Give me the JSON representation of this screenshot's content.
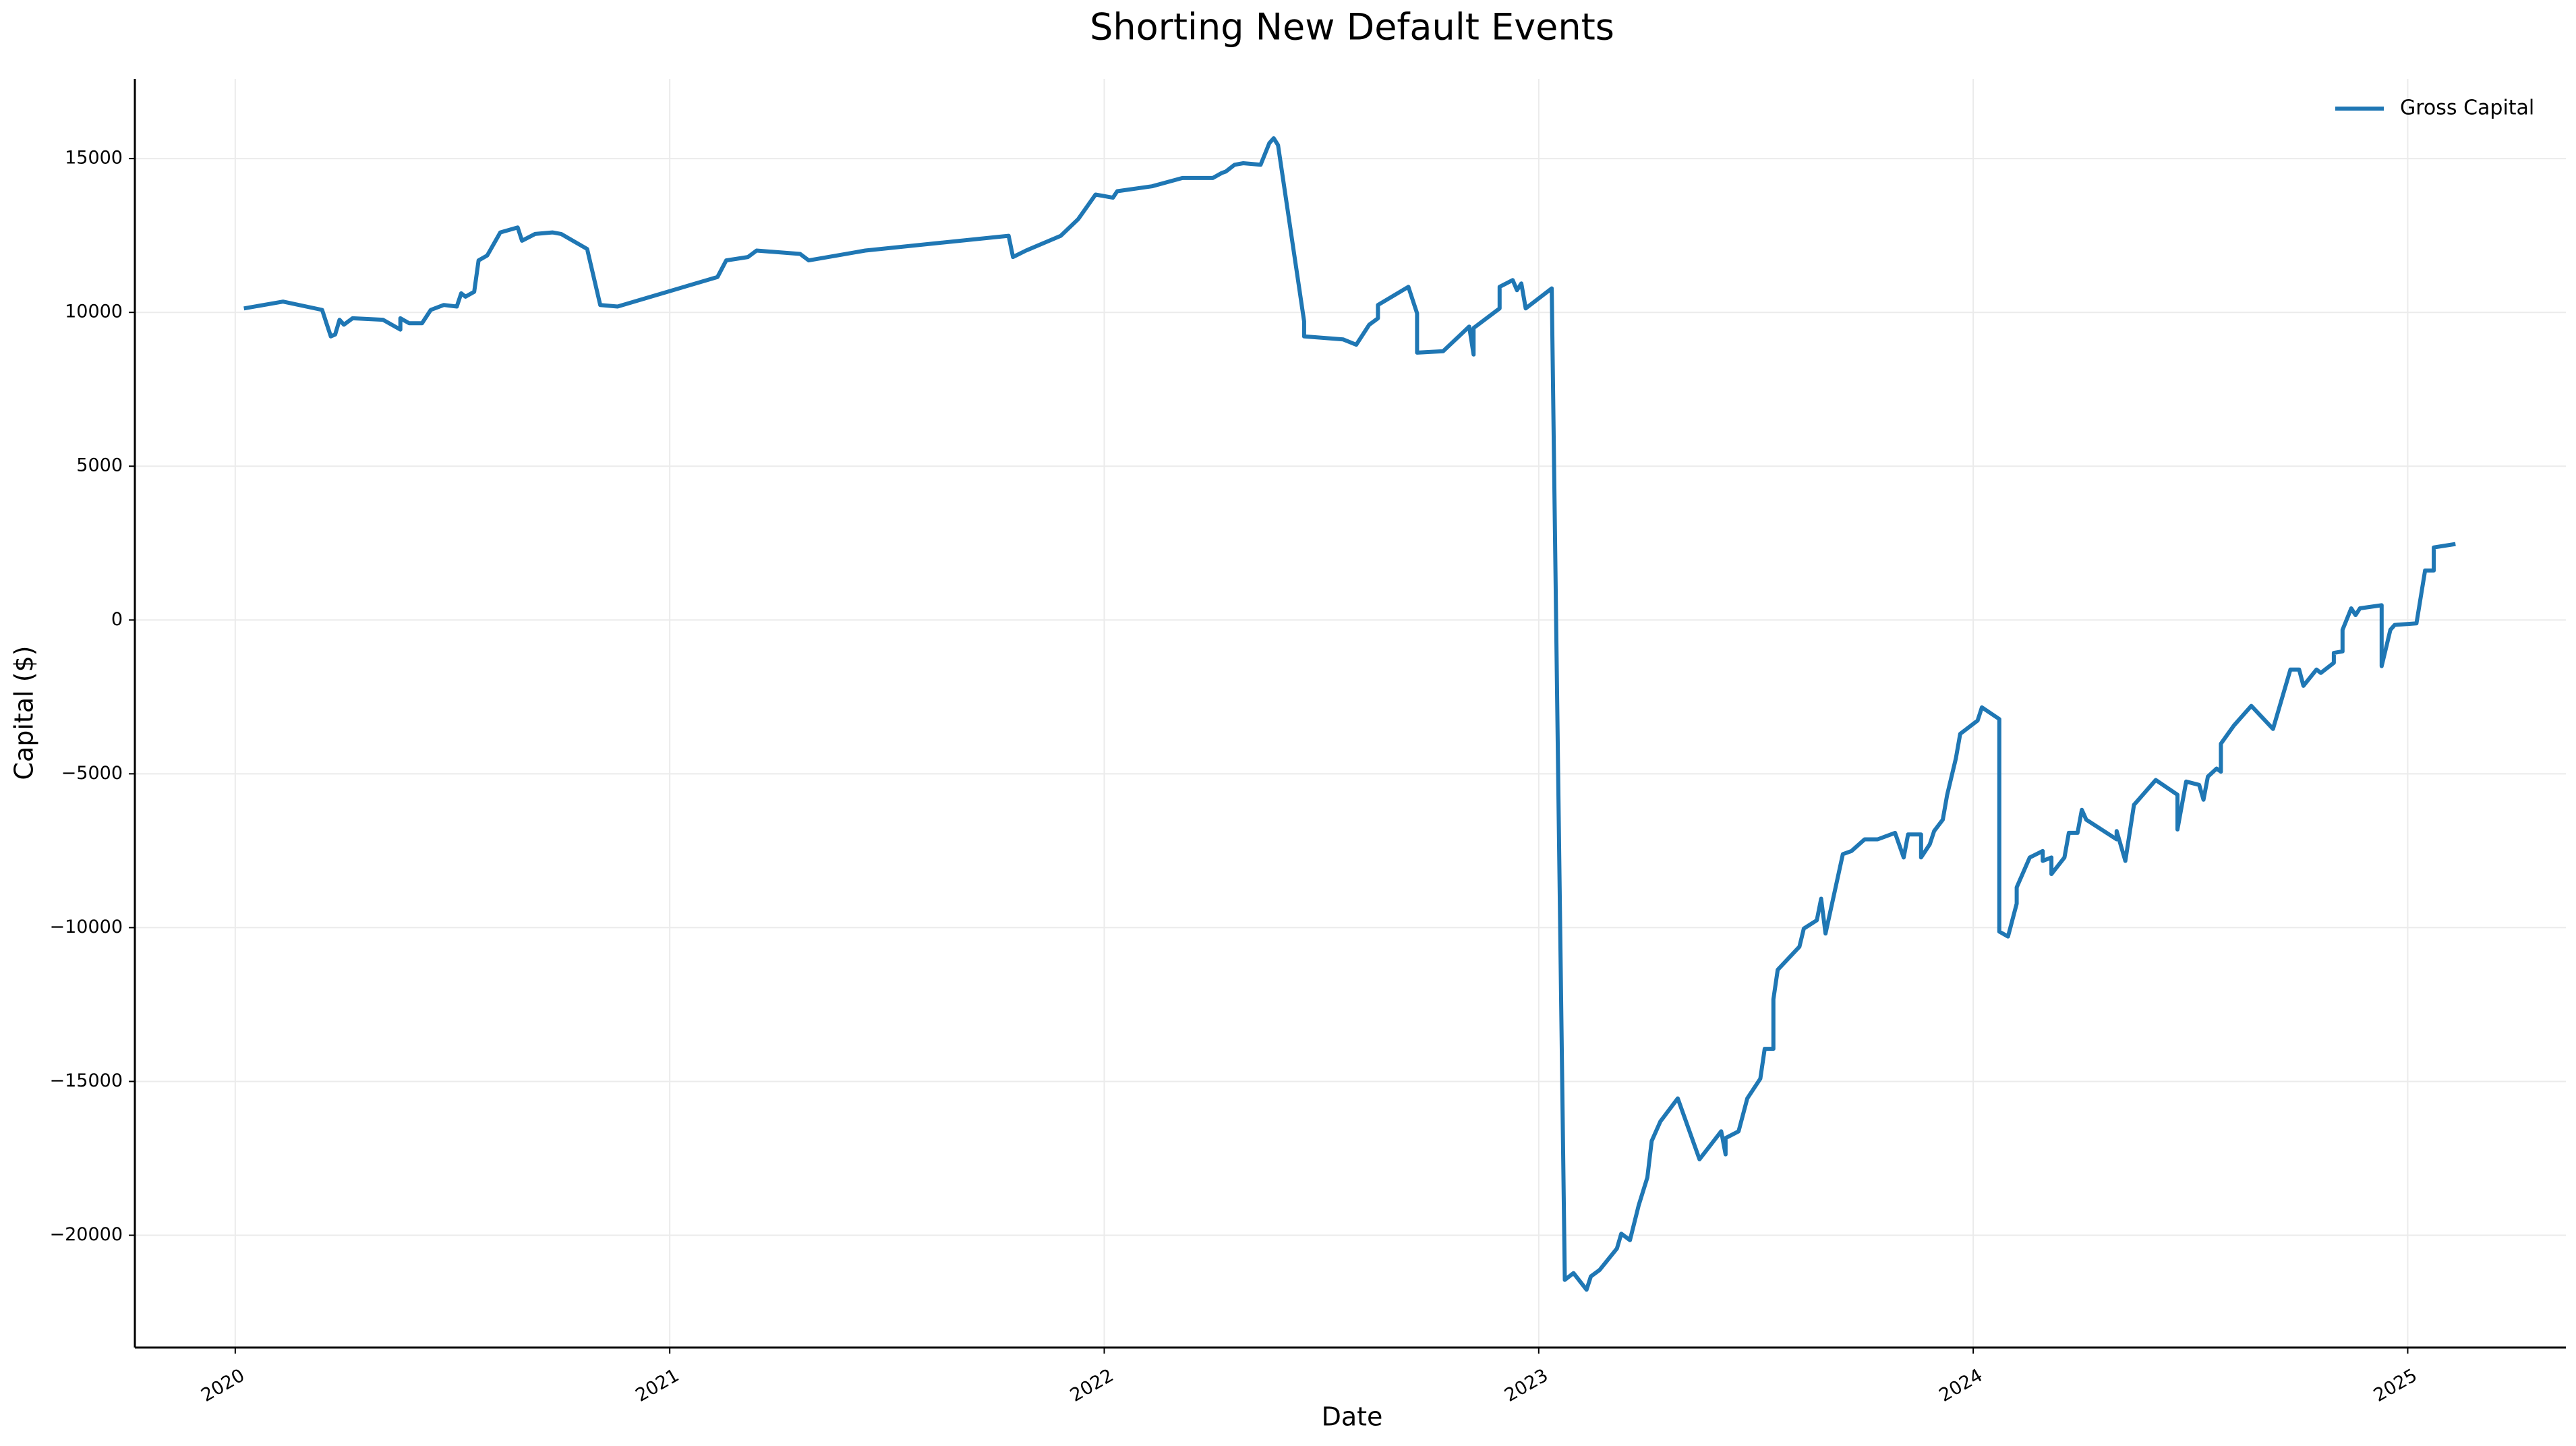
{
  "chart_data": {
    "type": "line",
    "title": "Shorting New Default Events",
    "xlabel": "Date",
    "ylabel": "Capital ($)",
    "x": [
      2020.02,
      2020.11,
      2020.2,
      2020.21,
      2020.22,
      2020.23,
      2020.24,
      2020.25,
      2020.27,
      2020.34,
      2020.38,
      2020.38,
      2020.4,
      2020.43,
      2020.45,
      2020.48,
      2020.51,
      2020.52,
      2020.53,
      2020.55,
      2020.56,
      2020.58,
      2020.61,
      2020.65,
      2020.66,
      2020.69,
      2020.73,
      2020.75,
      2020.81,
      2020.84,
      2020.88,
      2021.11,
      2021.13,
      2021.18,
      2021.2,
      2021.3,
      2021.32,
      2021.45,
      2021.78,
      2021.79,
      2021.82,
      2021.9,
      2021.94,
      2021.98,
      2022.02,
      2022.03,
      2022.11,
      2022.18,
      2022.25,
      2022.27,
      2022.28,
      2022.3,
      2022.32,
      2022.36,
      2022.38,
      2022.39,
      2022.4,
      2022.46,
      2022.46,
      2022.55,
      2022.58,
      2022.61,
      2022.63,
      2022.63,
      2022.7,
      2022.72,
      2022.72,
      2022.78,
      2022.84,
      2022.85,
      2022.85,
      2022.91,
      2022.91,
      2022.94,
      2022.95,
      2022.96,
      2022.97,
      2023.03,
      2023.06,
      2023.08,
      2023.11,
      2023.12,
      2023.14,
      2023.18,
      2023.19,
      2023.21,
      2023.23,
      2023.25,
      2023.26,
      2023.28,
      2023.32,
      2023.37,
      2023.42,
      2023.43,
      2023.43,
      2023.46,
      2023.48,
      2023.51,
      2023.52,
      2023.54,
      2023.54,
      2023.55,
      2023.6,
      2023.61,
      2023.64,
      2023.65,
      2023.66,
      2023.7,
      2023.72,
      2023.75,
      2023.78,
      2023.82,
      2023.84,
      2023.85,
      2023.88,
      2023.88,
      2023.9,
      2023.91,
      2023.93,
      2023.94,
      2023.96,
      2023.97,
      2024.01,
      2024.02,
      2024.06,
      2024.06,
      2024.08,
      2024.1,
      2024.1,
      2024.13,
      2024.16,
      2024.16,
      2024.18,
      2024.18,
      2024.21,
      2024.22,
      2024.24,
      2024.25,
      2024.26,
      2024.33,
      2024.33,
      2024.35,
      2024.37,
      2024.42,
      2024.47,
      2024.47,
      2024.49,
      2024.52,
      2024.53,
      2024.54,
      2024.56,
      2024.57,
      2024.57,
      2024.6,
      2024.64,
      2024.69,
      2024.73,
      2024.75,
      2024.76,
      2024.79,
      2024.8,
      2024.83,
      2024.83,
      2024.85,
      2024.85,
      2024.87,
      2024.88,
      2024.89,
      2024.94,
      2024.94,
      2024.96,
      2024.97,
      2025.02,
      2025.04,
      2025.06,
      2025.06,
      2025.11
    ],
    "series": [
      {
        "name": "Gross Capital",
        "color": "#1f77b4",
        "values": [
          10130,
          10350,
          10080,
          9650,
          9220,
          9280,
          9760,
          9600,
          9810,
          9760,
          9440,
          9810,
          9650,
          9650,
          10080,
          10240,
          10190,
          10620,
          10510,
          10670,
          11690,
          11850,
          12600,
          12760,
          12330,
          12550,
          12600,
          12550,
          12060,
          10240,
          10190,
          11150,
          11690,
          11800,
          12010,
          11900,
          11690,
          12010,
          12490,
          11800,
          12010,
          12490,
          13030,
          13830,
          13730,
          13940,
          14100,
          14370,
          14370,
          14530,
          14580,
          14800,
          14850,
          14800,
          15500,
          15660,
          15440,
          9710,
          9220,
          9120,
          8950,
          9600,
          9810,
          10240,
          10830,
          9970,
          8690,
          8740,
          9540,
          8630,
          9490,
          10130,
          10830,
          11050,
          10720,
          10940,
          10130,
          10780,
          -21450,
          -21230,
          -21770,
          -21340,
          -21130,
          -20430,
          -19950,
          -20160,
          -19030,
          -18120,
          -16940,
          -16300,
          -15550,
          -17530,
          -16620,
          -17370,
          -16840,
          -16620,
          -15550,
          -14910,
          -13940,
          -13940,
          -12330,
          -11370,
          -10620,
          -10030,
          -9760,
          -9060,
          -10190,
          -7610,
          -7510,
          -7130,
          -7130,
          -6920,
          -7720,
          -6970,
          -6970,
          -7720,
          -7290,
          -6860,
          -6490,
          -5680,
          -4500,
          -3700,
          -3270,
          -2840,
          -3220,
          -10130,
          -10290,
          -9220,
          -8690,
          -7720,
          -7510,
          -7830,
          -7720,
          -8260,
          -7720,
          -6920,
          -6920,
          -6170,
          -6490,
          -7130,
          -6860,
          -7830,
          -6010,
          -5200,
          -5680,
          -6810,
          -5250,
          -5360,
          -5840,
          -5090,
          -4830,
          -4930,
          -4020,
          -3430,
          -2790,
          -3540,
          -1610,
          -1610,
          -2140,
          -1610,
          -1720,
          -1390,
          -1070,
          -1020,
          -320,
          380,
          160,
          380,
          480,
          -1500,
          -320,
          -160,
          -110,
          1610,
          1610,
          2360,
          2470
        ]
      }
    ],
    "xlim": [
      2019.769,
      2025.364
    ],
    "xticks": [
      2020,
      2021,
      2022,
      2023,
      2024,
      2025
    ],
    "ylim": [
      -23650,
      17590
    ],
    "yticks": [
      {
        "value": -20000,
        "label": "−20000"
      },
      {
        "value": -15000,
        "label": "−15000"
      },
      {
        "value": -10000,
        "label": "−10000"
      },
      {
        "value": -5000,
        "label": "−5000"
      },
      0,
      5000,
      10000,
      15000
    ],
    "grid": true,
    "legend": "upper right"
  }
}
